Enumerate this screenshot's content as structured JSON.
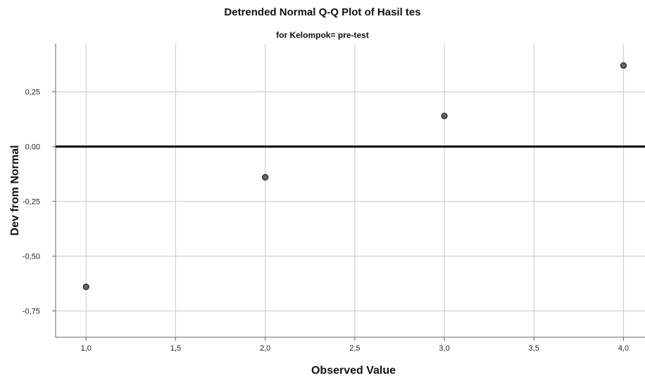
{
  "chart_data": {
    "type": "scatter",
    "title": "Detrended Normal Q-Q Plot of Hasil tes",
    "subtitle": "for Kelompok= pre-test",
    "xlabel": "Observed Value",
    "ylabel": "Dev from Normal",
    "xlim": [
      0.83,
      4.12
    ],
    "ylim": [
      -0.87,
      0.47
    ],
    "xticks": [
      1.0,
      1.5,
      2.0,
      2.5,
      3.0,
      3.5,
      4.0
    ],
    "xtick_labels": [
      "1,0",
      "1,5",
      "2,0",
      "2,5",
      "3,0",
      "3,5",
      "4,0"
    ],
    "yticks": [
      0.25,
      0.0,
      -0.25,
      -0.5,
      -0.75
    ],
    "ytick_labels": [
      "0,25",
      "0,00",
      "-0,25",
      "-0,50",
      "-0,75"
    ],
    "reference_line": 0.0,
    "grid": true,
    "point_color": "#666666",
    "points": [
      {
        "x": 1.0,
        "y": -0.64
      },
      {
        "x": 2.0,
        "y": -0.14
      },
      {
        "x": 3.0,
        "y": 0.14
      },
      {
        "x": 4.0,
        "y": 0.37
      }
    ]
  }
}
